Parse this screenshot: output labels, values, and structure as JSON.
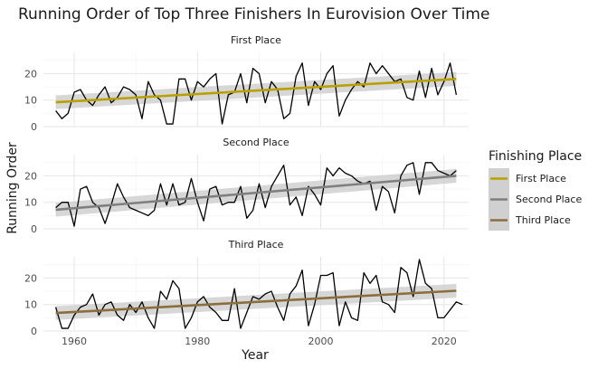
{
  "chart_data": {
    "type": "line",
    "title": "Running Order of Top Three Finishers In Eurovision Over Time",
    "xlabel": "Year",
    "ylabel": "Running Order",
    "xlim": [
      1955,
      2024
    ],
    "ylim": [
      0,
      28
    ],
    "x_ticks": [
      1960,
      1980,
      2000,
      2020
    ],
    "y_ticks": [
      0,
      10,
      20
    ],
    "legend": {
      "title": "Finishing Place",
      "position": "right",
      "entries": [
        "First Place",
        "Second Place",
        "Third Place"
      ]
    },
    "colors": {
      "First Place": "#b8a000",
      "Second Place": "#7f7f7f",
      "Third Place": "#8c6d3c",
      "raw_line": "#000000",
      "ribbon": "#d0d0d0"
    },
    "grid": true,
    "panels": [
      {
        "name": "First Place",
        "trend": {
          "start": [
            1957,
            9.2
          ],
          "end": [
            2022,
            18.0
          ],
          "band": 2.6
        },
        "points": [
          [
            1957,
            6
          ],
          [
            1958,
            3
          ],
          [
            1959,
            5
          ],
          [
            1960,
            13
          ],
          [
            1961,
            14
          ],
          [
            1962,
            10
          ],
          [
            1963,
            8
          ],
          [
            1964,
            12
          ],
          [
            1965,
            15
          ],
          [
            1966,
            9
          ],
          [
            1967,
            11
          ],
          [
            1968,
            15
          ],
          [
            1969,
            14
          ],
          [
            1970,
            12
          ],
          [
            1971,
            3
          ],
          [
            1972,
            17
          ],
          [
            1973,
            12
          ],
          [
            1974,
            10
          ],
          [
            1975,
            1
          ],
          [
            1976,
            1
          ],
          [
            1977,
            18
          ],
          [
            1978,
            18
          ],
          [
            1979,
            10
          ],
          [
            1980,
            17
          ],
          [
            1981,
            15
          ],
          [
            1982,
            18
          ],
          [
            1983,
            20
          ],
          [
            1984,
            1
          ],
          [
            1985,
            12
          ],
          [
            1986,
            13
          ],
          [
            1987,
            20
          ],
          [
            1988,
            9
          ],
          [
            1989,
            22
          ],
          [
            1990,
            20
          ],
          [
            1991,
            9
          ],
          [
            1992,
            17
          ],
          [
            1993,
            14
          ],
          [
            1994,
            3
          ],
          [
            1995,
            5
          ],
          [
            1996,
            19
          ],
          [
            1997,
            24
          ],
          [
            1998,
            8
          ],
          [
            1999,
            17
          ],
          [
            2000,
            14
          ],
          [
            2001,
            20
          ],
          [
            2002,
            23
          ],
          [
            2003,
            4
          ],
          [
            2004,
            10
          ],
          [
            2005,
            14
          ],
          [
            2006,
            17
          ],
          [
            2007,
            15
          ],
          [
            2008,
            24
          ],
          [
            2009,
            20
          ],
          [
            2010,
            23
          ],
          [
            2011,
            20
          ],
          [
            2012,
            17
          ],
          [
            2013,
            18
          ],
          [
            2014,
            11
          ],
          [
            2015,
            10
          ],
          [
            2016,
            21
          ],
          [
            2017,
            11
          ],
          [
            2018,
            22
          ],
          [
            2019,
            12
          ],
          [
            2020,
            17
          ],
          [
            2021,
            24
          ],
          [
            2022,
            12
          ]
        ]
      },
      {
        "name": "Second Place",
        "trend": {
          "start": [
            1957,
            7.2
          ],
          "end": [
            2022,
            20.0
          ],
          "band": 2.6
        },
        "points": [
          [
            1957,
            8
          ],
          [
            1958,
            10
          ],
          [
            1959,
            10
          ],
          [
            1960,
            1
          ],
          [
            1961,
            15
          ],
          [
            1962,
            16
          ],
          [
            1963,
            10
          ],
          [
            1964,
            8
          ],
          [
            1965,
            2
          ],
          [
            1966,
            9
          ],
          [
            1967,
            17
          ],
          [
            1968,
            12
          ],
          [
            1969,
            8
          ],
          [
            1970,
            7
          ],
          [
            1971,
            6
          ],
          [
            1972,
            5
          ],
          [
            1973,
            7
          ],
          [
            1974,
            17
          ],
          [
            1975,
            9
          ],
          [
            1976,
            17
          ],
          [
            1977,
            9
          ],
          [
            1978,
            10
          ],
          [
            1979,
            19
          ],
          [
            1980,
            10
          ],
          [
            1981,
            3
          ],
          [
            1982,
            15
          ],
          [
            1983,
            16
          ],
          [
            1984,
            9
          ],
          [
            1985,
            10
          ],
          [
            1986,
            10
          ],
          [
            1987,
            16
          ],
          [
            1988,
            4
          ],
          [
            1989,
            7
          ],
          [
            1990,
            17
          ],
          [
            1991,
            8
          ],
          [
            1992,
            16
          ],
          [
            1993,
            20
          ],
          [
            1994,
            24
          ],
          [
            1995,
            9
          ],
          [
            1996,
            12
          ],
          [
            1997,
            5
          ],
          [
            1998,
            16
          ],
          [
            1999,
            13
          ],
          [
            2000,
            9
          ],
          [
            2001,
            23
          ],
          [
            2002,
            20
          ],
          [
            2003,
            23
          ],
          [
            2004,
            21
          ],
          [
            2005,
            20
          ],
          [
            2006,
            18
          ],
          [
            2007,
            17
          ],
          [
            2008,
            18
          ],
          [
            2009,
            7
          ],
          [
            2010,
            16
          ],
          [
            2011,
            14
          ],
          [
            2012,
            6
          ],
          [
            2013,
            20
          ],
          [
            2014,
            24
          ],
          [
            2015,
            25
          ],
          [
            2016,
            13
          ],
          [
            2017,
            25
          ],
          [
            2018,
            25
          ],
          [
            2019,
            22
          ],
          [
            2020,
            21
          ],
          [
            2021,
            20
          ],
          [
            2022,
            22
          ]
        ]
      },
      {
        "name": "Third Place",
        "trend": {
          "start": [
            1957,
            6.8
          ],
          "end": [
            2022,
            15.2
          ],
          "band": 2.6
        },
        "points": [
          [
            1957,
            9
          ],
          [
            1958,
            1
          ],
          [
            1959,
            1
          ],
          [
            1960,
            6
          ],
          [
            1961,
            9
          ],
          [
            1962,
            10
          ],
          [
            1963,
            14
          ],
          [
            1964,
            6
          ],
          [
            1965,
            10
          ],
          [
            1966,
            11
          ],
          [
            1967,
            6
          ],
          [
            1968,
            4
          ],
          [
            1969,
            10
          ],
          [
            1970,
            7
          ],
          [
            1971,
            11
          ],
          [
            1972,
            5
          ],
          [
            1973,
            1
          ],
          [
            1974,
            15
          ],
          [
            1975,
            12
          ],
          [
            1976,
            19
          ],
          [
            1977,
            16
          ],
          [
            1978,
            1
          ],
          [
            1979,
            5
          ],
          [
            1980,
            11
          ],
          [
            1981,
            13
          ],
          [
            1982,
            9
          ],
          [
            1983,
            7
          ],
          [
            1984,
            4
          ],
          [
            1985,
            4
          ],
          [
            1986,
            16
          ],
          [
            1987,
            1
          ],
          [
            1988,
            7
          ],
          [
            1989,
            13
          ],
          [
            1990,
            12
          ],
          [
            1991,
            14
          ],
          [
            1992,
            15
          ],
          [
            1993,
            9
          ],
          [
            1994,
            4
          ],
          [
            1995,
            14
          ],
          [
            1996,
            17
          ],
          [
            1997,
            23
          ],
          [
            1998,
            2
          ],
          [
            1999,
            10
          ],
          [
            2000,
            21
          ],
          [
            2001,
            21
          ],
          [
            2002,
            22
          ],
          [
            2003,
            2
          ],
          [
            2004,
            11
          ],
          [
            2005,
            5
          ],
          [
            2006,
            4
          ],
          [
            2007,
            22
          ],
          [
            2008,
            18
          ],
          [
            2009,
            21
          ],
          [
            2010,
            11
          ],
          [
            2011,
            10
          ],
          [
            2012,
            7
          ],
          [
            2013,
            24
          ],
          [
            2014,
            22
          ],
          [
            2015,
            13
          ],
          [
            2016,
            27
          ],
          [
            2017,
            18
          ],
          [
            2018,
            16
          ],
          [
            2019,
            5
          ],
          [
            2020,
            5
          ],
          [
            2021,
            8
          ],
          [
            2022,
            11
          ],
          [
            2023,
            10
          ]
        ]
      }
    ]
  }
}
